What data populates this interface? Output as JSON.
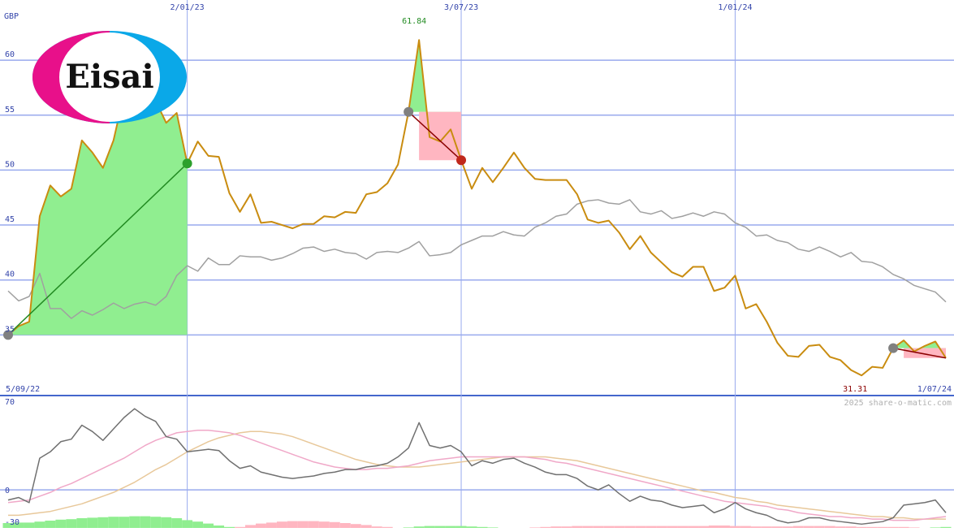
{
  "chart_data": [
    {
      "type": "line",
      "title": "",
      "ylabel": "GBP",
      "ylim": [
        30,
        64
      ],
      "yticks": [
        "60",
        "55",
        "50",
        "45",
        "40",
        "35"
      ],
      "x_tick_labels": [
        "2/01/23",
        "3/07/23",
        "1/01/24"
      ],
      "x_tick_index": [
        17,
        43,
        69
      ],
      "range_start_label": "5/09/22",
      "range_end_label": "1/07/24",
      "max_label": "61.84",
      "min_label": "31.31",
      "watermark": "2025 share-o-matic.com",
      "logo_text": "Eisai",
      "colors": {
        "price": "#c98c10",
        "index": "#a0a0a0",
        "grid": "#99aaee",
        "gain": "#90ee90",
        "loss": "#ffb6c1",
        "up_line": "#228b22",
        "down_line": "#8b0000",
        "text": "#3344aa"
      },
      "series": [
        {
          "role": "price",
          "values": [
            35.0,
            35.8,
            36.2,
            45.8,
            48.6,
            47.6,
            48.3,
            52.7,
            51.6,
            50.2,
            52.7,
            56.9,
            60.4,
            56.6,
            56.3,
            54.3,
            55.2,
            50.6,
            52.6,
            51.3,
            51.2,
            47.9,
            46.2,
            47.8,
            45.2,
            45.3,
            45.0,
            44.7,
            45.1,
            45.1,
            45.8,
            45.7,
            46.2,
            46.1,
            47.8,
            48.0,
            48.8,
            50.5,
            55.3,
            61.84,
            53.0,
            52.6,
            53.7,
            50.9,
            48.3,
            50.2,
            48.9,
            50.2,
            51.6,
            50.2,
            49.2,
            49.1,
            49.1,
            49.1,
            47.8,
            45.5,
            45.2,
            45.4,
            44.3,
            42.8,
            44.0,
            42.5,
            41.6,
            40.7,
            40.3,
            41.2,
            41.2,
            39.0,
            39.3,
            40.4,
            37.4,
            37.8,
            36.2,
            34.3,
            33.1,
            33.0,
            34.0,
            34.1,
            33.0,
            32.7,
            31.8,
            31.31,
            32.1,
            32.0,
            33.8,
            34.5,
            33.5,
            34.0,
            34.4,
            32.9
          ]
        },
        {
          "role": "index",
          "values": [
            39.0,
            38.1,
            38.5,
            40.6,
            37.4,
            37.4,
            36.5,
            37.2,
            36.8,
            37.3,
            37.9,
            37.4,
            37.8,
            38.0,
            37.7,
            38.5,
            40.4,
            41.3,
            40.8,
            42.0,
            41.4,
            41.4,
            42.2,
            42.1,
            42.1,
            41.8,
            42.0,
            42.4,
            42.9,
            43.0,
            42.6,
            42.8,
            42.5,
            42.4,
            41.9,
            42.5,
            42.6,
            42.5,
            42.9,
            43.5,
            42.2,
            42.3,
            42.5,
            43.2,
            43.6,
            44.0,
            44.0,
            44.4,
            44.1,
            44.0,
            44.8,
            45.2,
            45.8,
            46.0,
            46.9,
            47.2,
            47.3,
            47.0,
            46.9,
            47.3,
            46.2,
            46.0,
            46.3,
            45.6,
            45.8,
            46.1,
            45.8,
            46.2,
            46.0,
            45.2,
            44.8,
            44.0,
            44.1,
            43.6,
            43.4,
            42.8,
            42.6,
            43.0,
            42.6,
            42.1,
            42.5,
            41.7,
            41.6,
            41.2,
            40.5,
            40.1,
            39.5,
            39.2,
            38.9,
            38.0
          ]
        }
      ]
    },
    {
      "type": "line",
      "title": "",
      "ylim": [
        -30,
        75
      ],
      "yticks": [
        "70",
        "0",
        "-30"
      ],
      "series": [
        {
          "role": "momentum",
          "color": "#707070",
          "values": [
            -8,
            -6,
            -10,
            25,
            30,
            38,
            40,
            51,
            46,
            39,
            48,
            57,
            64,
            58,
            54,
            42,
            40,
            30,
            31,
            32,
            31,
            23,
            17,
            19,
            14,
            12,
            10,
            9,
            10,
            11,
            13,
            14,
            16,
            16,
            18,
            19,
            21,
            26,
            33,
            53,
            35,
            33,
            35,
            30,
            19,
            23,
            21,
            24,
            25,
            21,
            18,
            14,
            12,
            12,
            9,
            3,
            0,
            4,
            -3,
            -9,
            -5,
            -8,
            -9,
            -12,
            -14,
            -13,
            -12,
            -18,
            -15,
            -10,
            -15,
            -18,
            -20,
            -24,
            -26,
            -25,
            -22,
            -22,
            -24,
            -25,
            -26,
            -27,
            -26,
            -25,
            -22,
            -12,
            -11,
            -10,
            -8,
            -18
          ]
        },
        {
          "role": "ma-fast",
          "color": "#f0a8c8",
          "values": [
            -10,
            -9,
            -8,
            -5,
            -2,
            2,
            5,
            9,
            13,
            17,
            21,
            25,
            30,
            35,
            39,
            42,
            45,
            46,
            47,
            47,
            46,
            45,
            43,
            40,
            37,
            34,
            31,
            28,
            25,
            22,
            20,
            18,
            17,
            16,
            16,
            17,
            17,
            18,
            19,
            21,
            23,
            24,
            25,
            26,
            26,
            26,
            26,
            26,
            26,
            26,
            25,
            24,
            22,
            21,
            19,
            17,
            15,
            13,
            11,
            9,
            7,
            5,
            3,
            1,
            -1,
            -3,
            -5,
            -7,
            -9,
            -10,
            -11,
            -12,
            -13,
            -15,
            -16,
            -18,
            -19,
            -20,
            -21,
            -21,
            -22,
            -22,
            -23,
            -23,
            -24,
            -24,
            -24,
            -23,
            -22,
            -21
          ]
        },
        {
          "role": "ma-slow",
          "color": "#e8c89a",
          "values": [
            -20,
            -20,
            -19,
            -18,
            -17,
            -15,
            -13,
            -11,
            -8,
            -5,
            -2,
            2,
            6,
            11,
            16,
            20,
            25,
            30,
            34,
            38,
            41,
            43,
            45,
            46,
            46,
            45,
            44,
            42,
            39,
            36,
            33,
            30,
            27,
            24,
            22,
            20,
            19,
            18,
            18,
            18,
            19,
            20,
            21,
            22,
            23,
            24,
            25,
            26,
            26,
            26,
            26,
            26,
            25,
            24,
            23,
            21,
            19,
            17,
            15,
            13,
            11,
            9,
            7,
            5,
            3,
            1,
            -1,
            -2,
            -4,
            -6,
            -7,
            -9,
            -10,
            -12,
            -13,
            -14,
            -15,
            -16,
            -17,
            -18,
            -19,
            -20,
            -21,
            -21,
            -22,
            -22,
            -23,
            -23,
            -23,
            -23
          ]
        }
      ]
    }
  ]
}
